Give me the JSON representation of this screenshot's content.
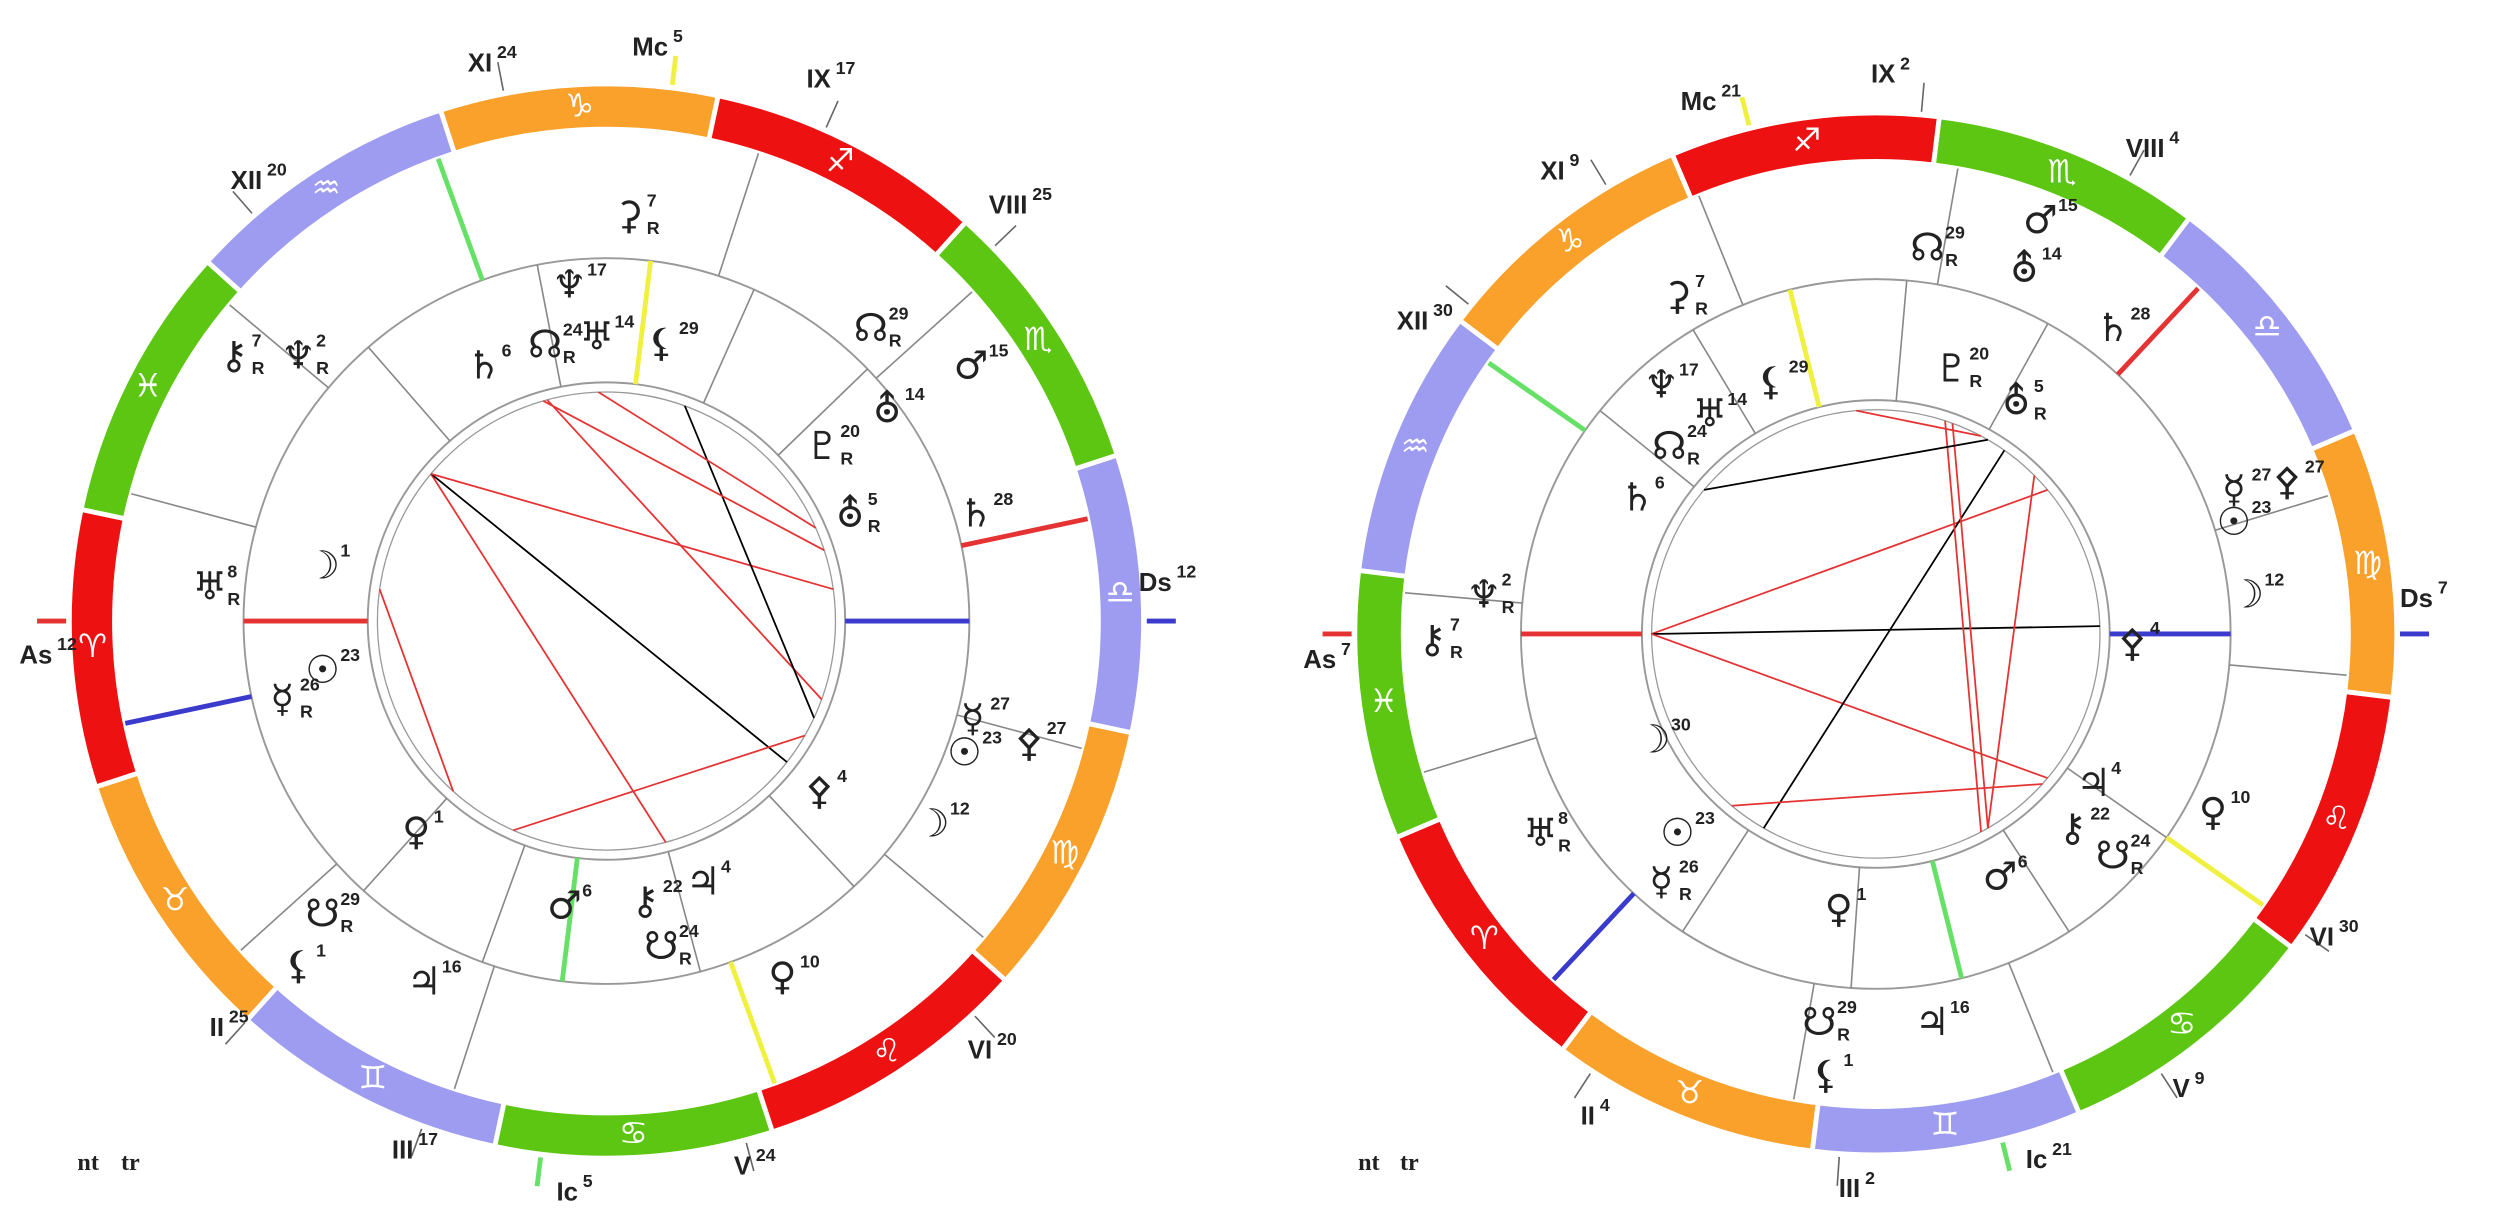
{
  "charts": [
    {
      "houses": [
        {
          "label": "XI",
          "degree": "24"
        },
        {
          "label": "Mc",
          "degree": "5"
        },
        {
          "label": "IX",
          "degree": "17"
        },
        {
          "label": "VIII",
          "degree": "25"
        },
        {
          "label": "Ds",
          "degree": "12"
        },
        {
          "label": "VI",
          "degree": "20"
        },
        {
          "label": "V",
          "degree": "24"
        },
        {
          "label": "Ic",
          "degree": "5"
        },
        {
          "label": "III",
          "degree": "17"
        },
        {
          "label": "II",
          "degree": "25"
        },
        {
          "label": "As",
          "degree": "12"
        },
        {
          "label": "XII",
          "degree": "20"
        }
      ],
      "signs": [
        "♈",
        "♉",
        "♊",
        "♋",
        "♌",
        "♍",
        "♎",
        "♏",
        "♐",
        "♑",
        "♒",
        "♓"
      ],
      "planets": [
        {
          "glyph": "⚷",
          "degree": "7",
          "retro": "R"
        },
        {
          "glyph": "♆",
          "degree": "2",
          "retro": "R"
        },
        {
          "glyph": "⚳",
          "degree": "7",
          "retro": "R"
        },
        {
          "glyph": "☊",
          "degree": "29",
          "retro": "R"
        },
        {
          "glyph": "♂",
          "degree": "15"
        },
        {
          "glyph": "⛢",
          "degree": "14"
        },
        {
          "glyph": "♄",
          "degree": "28"
        },
        {
          "glyph": "☿",
          "degree": "27"
        },
        {
          "glyph": "☉",
          "degree": "23"
        },
        {
          "glyph": "⚴",
          "degree": "27"
        },
        {
          "glyph": "☽",
          "degree": "12"
        },
        {
          "glyph": "♀",
          "degree": "10"
        },
        {
          "glyph": "♃",
          "degree": "16"
        },
        {
          "glyph": "☋",
          "degree": "29",
          "retro": "R"
        },
        {
          "glyph": "⚸",
          "degree": "1"
        },
        {
          "glyph": "♅",
          "degree": "8",
          "retro": "R"
        },
        {
          "glyph": "☽",
          "degree": "1"
        },
        {
          "glyph": "☉",
          "degree": "23"
        },
        {
          "glyph": "☿",
          "degree": "26",
          "retro": "R"
        },
        {
          "glyph": "♀",
          "degree": "1"
        },
        {
          "glyph": "♂",
          "degree": "6"
        },
        {
          "glyph": "⚷",
          "degree": "22"
        },
        {
          "glyph": "♃",
          "degree": "4"
        },
        {
          "glyph": "☋",
          "degree": "24",
          "retro": "R"
        },
        {
          "glyph": "⚴",
          "degree": "4"
        },
        {
          "glyph": "♇",
          "degree": "20",
          "retro": "R"
        },
        {
          "glyph": "⛢",
          "degree": "5",
          "retro": "R"
        },
        {
          "glyph": "♄",
          "degree": "6"
        },
        {
          "glyph": "♆",
          "degree": "17"
        },
        {
          "glyph": "☊",
          "degree": "24",
          "retro": "R"
        },
        {
          "glyph": "♅",
          "degree": "14"
        },
        {
          "glyph": "⚸",
          "degree": "29"
        }
      ],
      "footer": [
        "nt",
        "tr"
      ]
    },
    {
      "houses": [
        {
          "label": "IX",
          "degree": "2"
        },
        {
          "label": "Mc",
          "degree": "21"
        },
        {
          "label": "XI",
          "degree": "9"
        },
        {
          "label": "XII",
          "degree": "30"
        },
        {
          "label": "As",
          "degree": "7"
        },
        {
          "label": "II",
          "degree": "4"
        },
        {
          "label": "III",
          "degree": "2"
        },
        {
          "label": "Ic",
          "degree": "21"
        },
        {
          "label": "V",
          "degree": "9"
        },
        {
          "label": "VI",
          "degree": "30"
        },
        {
          "label": "Ds",
          "degree": "7"
        },
        {
          "label": "VIII",
          "degree": "4"
        }
      ],
      "signs": [
        "♈",
        "♉",
        "♊",
        "♋",
        "♌",
        "♍",
        "♎",
        "♏",
        "♐",
        "♑",
        "♒",
        "♓"
      ],
      "planets": [
        {
          "glyph": "♂",
          "degree": "15"
        },
        {
          "glyph": "⛢",
          "degree": "14"
        },
        {
          "glyph": "☊",
          "degree": "29",
          "retro": "R"
        },
        {
          "glyph": "♄",
          "degree": "28"
        },
        {
          "glyph": "⚳",
          "degree": "7",
          "retro": "R"
        },
        {
          "glyph": "♆",
          "degree": "17"
        },
        {
          "glyph": "⚸",
          "degree": "29"
        },
        {
          "glyph": "♇",
          "degree": "20",
          "retro": "R"
        },
        {
          "glyph": "⛢",
          "degree": "5",
          "retro": "R"
        },
        {
          "glyph": "♅",
          "degree": "14"
        },
        {
          "glyph": "☊",
          "degree": "24",
          "retro": "R"
        },
        {
          "glyph": "♄",
          "degree": "6"
        },
        {
          "glyph": "⚴",
          "degree": "27"
        },
        {
          "glyph": "☿",
          "degree": "27"
        },
        {
          "glyph": "☉",
          "degree": "23"
        },
        {
          "glyph": "☽",
          "degree": "12"
        },
        {
          "glyph": "⚴",
          "degree": "4"
        },
        {
          "glyph": "♆",
          "degree": "2",
          "retro": "R"
        },
        {
          "glyph": "⚷",
          "degree": "7",
          "retro": "R"
        },
        {
          "glyph": "☽",
          "degree": "30"
        },
        {
          "glyph": "♅",
          "degree": "8",
          "retro": "R"
        },
        {
          "glyph": "☉",
          "degree": "23"
        },
        {
          "glyph": "☿",
          "degree": "26",
          "retro": "R"
        },
        {
          "glyph": "♀",
          "degree": "1"
        },
        {
          "glyph": "♂",
          "degree": "6"
        },
        {
          "glyph": "⚷",
          "degree": "22"
        },
        {
          "glyph": "♃",
          "degree": "4"
        },
        {
          "glyph": "☋",
          "degree": "24",
          "retro": "R"
        },
        {
          "glyph": "♀",
          "degree": "10"
        },
        {
          "glyph": "☋",
          "degree": "29",
          "retro": "R"
        },
        {
          "glyph": "♃",
          "degree": "16"
        },
        {
          "glyph": "⚸",
          "degree": "1"
        }
      ],
      "footer": [
        "nt",
        "tr"
      ]
    }
  ]
}
